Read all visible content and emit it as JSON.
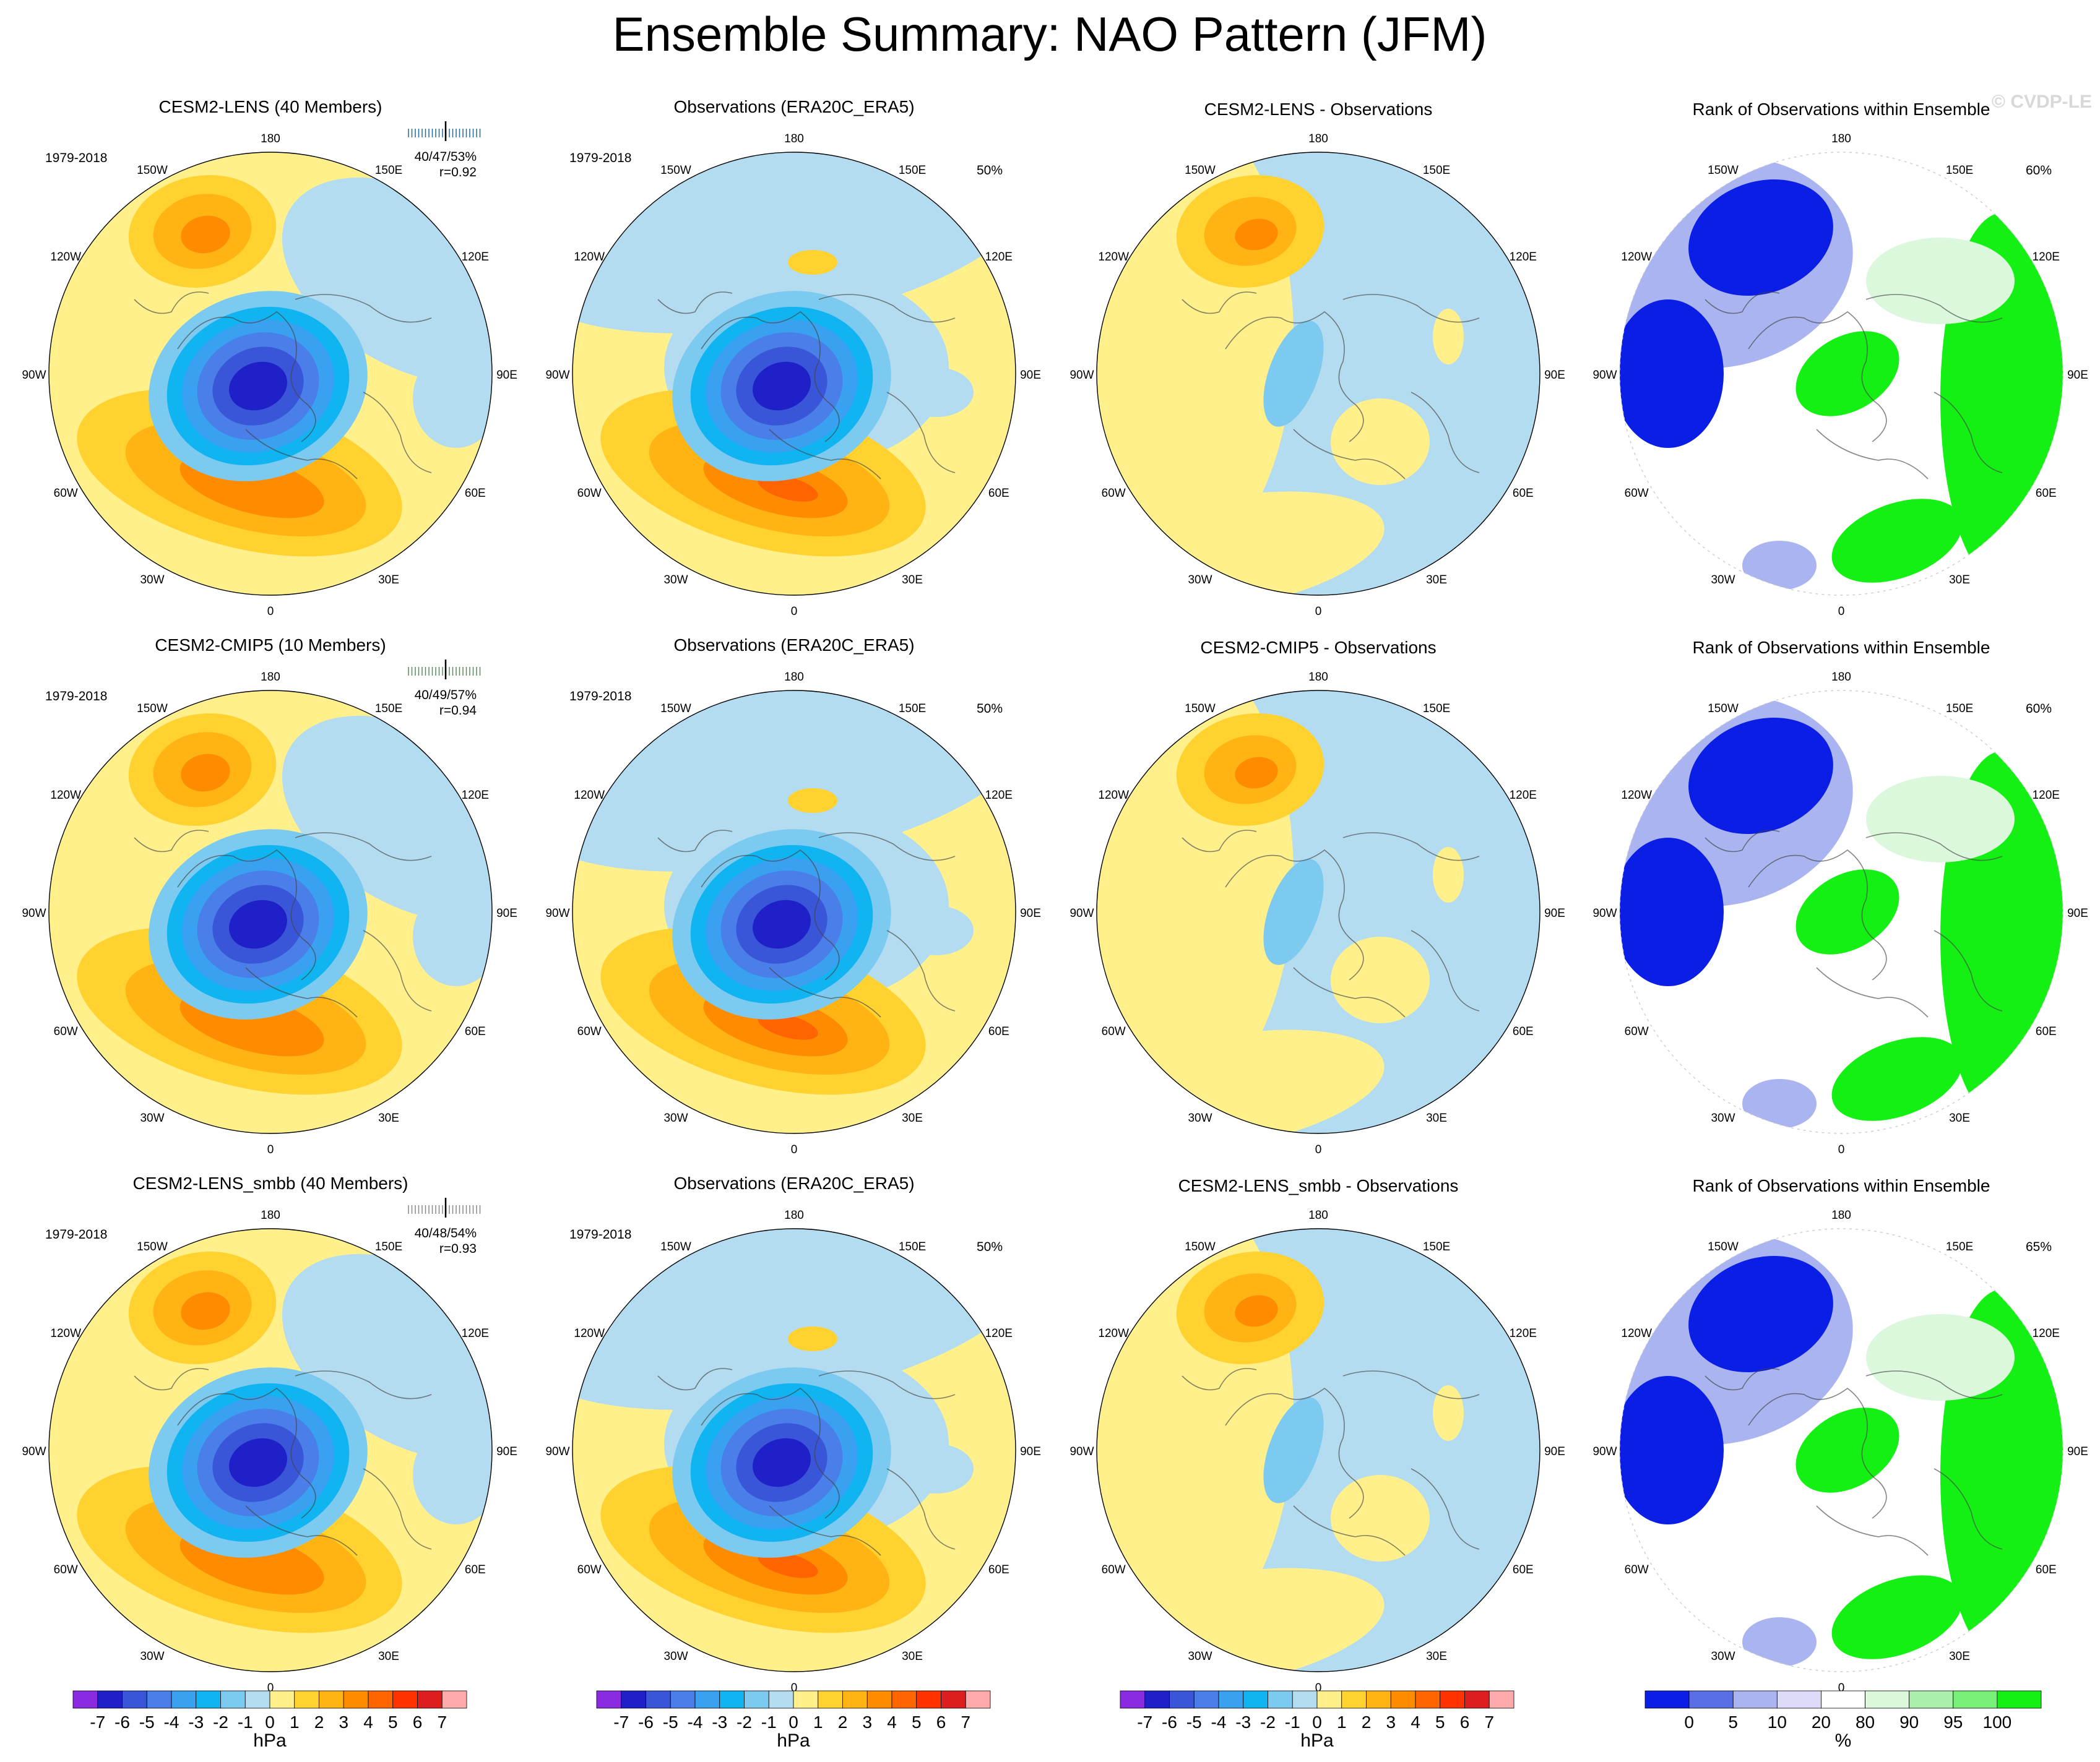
{
  "title": "Ensemble Summary: NAO Pattern (JFM)",
  "watermark": "© CVDP-LE",
  "colors": {
    "title_lens": "#1e6aa0",
    "title_cmip5": "#5a8a5a",
    "title_smbb": "#888888",
    "land_outline": "#444444"
  },
  "lon_labels": [
    "180",
    "150E",
    "120E",
    "90E",
    "60E",
    "30E",
    "0",
    "30W",
    "60W",
    "90W",
    "120W",
    "150W"
  ],
  "rows": [
    {
      "model": {
        "title": "CESM2-LENS (40 Members)",
        "color_key": "title_lens",
        "period": "1979-2018",
        "stat_pct": "40/47/53%",
        "stat_r": "r=0.92"
      },
      "obs": {
        "title": "Observations (ERA20C_ERA5)",
        "period": "1979-2018",
        "pct": "50%"
      },
      "diff": {
        "title": "CESM2-LENS - Observations"
      },
      "rank": {
        "title": "Rank of Observations within Ensemble",
        "pct": "60%"
      }
    },
    {
      "model": {
        "title": "CESM2-CMIP5 (10 Members)",
        "color_key": "title_cmip5",
        "period": "1979-2018",
        "stat_pct": "40/49/57%",
        "stat_r": "r=0.94"
      },
      "obs": {
        "title": "Observations (ERA20C_ERA5)",
        "period": "1979-2018",
        "pct": "50%"
      },
      "diff": {
        "title": "CESM2-CMIP5 - Observations"
      },
      "rank": {
        "title": "Rank of Observations within Ensemble",
        "pct": "60%"
      }
    },
    {
      "model": {
        "title": "CESM2-LENS_smbb (40 Members)",
        "color_key": "title_smbb",
        "period": "1979-2018",
        "stat_pct": "40/48/54%",
        "stat_r": "r=0.93"
      },
      "obs": {
        "title": "Observations (ERA20C_ERA5)",
        "period": "1979-2018",
        "pct": "50%"
      },
      "diff": {
        "title": "CESM2-LENS_smbb - Observations"
      },
      "rank": {
        "title": "Rank of Observations within Ensemble",
        "pct": "65%"
      }
    }
  ],
  "colorbar_hpa": {
    "labels": [
      "-7",
      "-6",
      "-5",
      "-4",
      "-3",
      "-2",
      "-1",
      "0",
      "1",
      "2",
      "3",
      "4",
      "5",
      "6",
      "7"
    ],
    "colors": [
      "#8a2be2",
      "#2020c8",
      "#3a56d8",
      "#4a7ee8",
      "#3aa0f0",
      "#10b4f0",
      "#7ccaf0",
      "#b4dcf0",
      "#fff08c",
      "#ffd230",
      "#ffb414",
      "#ff8c00",
      "#ff6400",
      "#ff3200",
      "#dc1e1e",
      "#ffaaaa"
    ],
    "unit": "hPa"
  },
  "colorbar_rank": {
    "labels": [
      "0",
      "5",
      "10",
      "20",
      "80",
      "90",
      "95",
      "100"
    ],
    "colors": [
      "#0a1ee6",
      "#5a6ee6",
      "#aab4f0",
      "#dcdcf8",
      "#ffffff",
      "#dcf8dc",
      "#aaf0aa",
      "#78f078",
      "#14f014"
    ],
    "unit": "%"
  }
}
